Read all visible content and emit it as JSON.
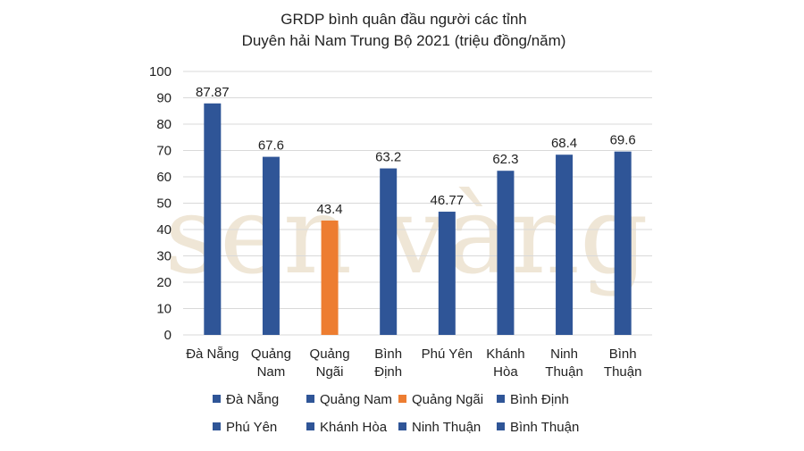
{
  "chart_data": {
    "type": "bar",
    "title_lines": [
      "GRDP bình quân đầu người các tỉnh",
      "Duyên hải Nam Trung Bộ 2021 (triệu đồng/năm)"
    ],
    "categories": [
      [
        "Đà Nẵng"
      ],
      [
        "Quảng",
        "Nam"
      ],
      [
        "Quảng",
        "Ngãi"
      ],
      [
        "Bình",
        "Định"
      ],
      [
        "Phú Yên"
      ],
      [
        "Khánh",
        "Hòa"
      ],
      [
        "Ninh",
        "Thuận"
      ],
      [
        "Bình",
        "Thuận"
      ]
    ],
    "values": [
      87.87,
      67.6,
      43.4,
      63.2,
      46.77,
      62.3,
      68.4,
      69.6
    ],
    "value_labels": [
      "87.87",
      "67.6",
      "43.4",
      "63.2",
      "46.77",
      "62.3",
      "68.4",
      "69.6"
    ],
    "bar_colors": [
      "#2f5597",
      "#2f5597",
      "#ed7d31",
      "#2f5597",
      "#2f5597",
      "#2f5597",
      "#2f5597",
      "#2f5597"
    ],
    "legend": [
      {
        "name": "Đà Nẵng",
        "color": "#2f5597"
      },
      {
        "name": "Quảng Nam",
        "color": "#2f5597"
      },
      {
        "name": "Quảng Ngãi",
        "color": "#ed7d31"
      },
      {
        "name": "Bình Định",
        "color": "#2f5597"
      },
      {
        "name": "Phú Yên",
        "color": "#2f5597"
      },
      {
        "name": "Khánh Hòa",
        "color": "#2f5597"
      },
      {
        "name": "Ninh Thuận",
        "color": "#2f5597"
      },
      {
        "name": "Bình Thuận",
        "color": "#2f5597"
      }
    ],
    "legend_position": "bottom",
    "ylim": [
      0,
      100
    ],
    "yticks": [
      0,
      10,
      20,
      30,
      40,
      50,
      60,
      70,
      80,
      90,
      100
    ],
    "grid": true,
    "gridline_color": "#d9d9d9"
  },
  "watermark": "sen vàng"
}
